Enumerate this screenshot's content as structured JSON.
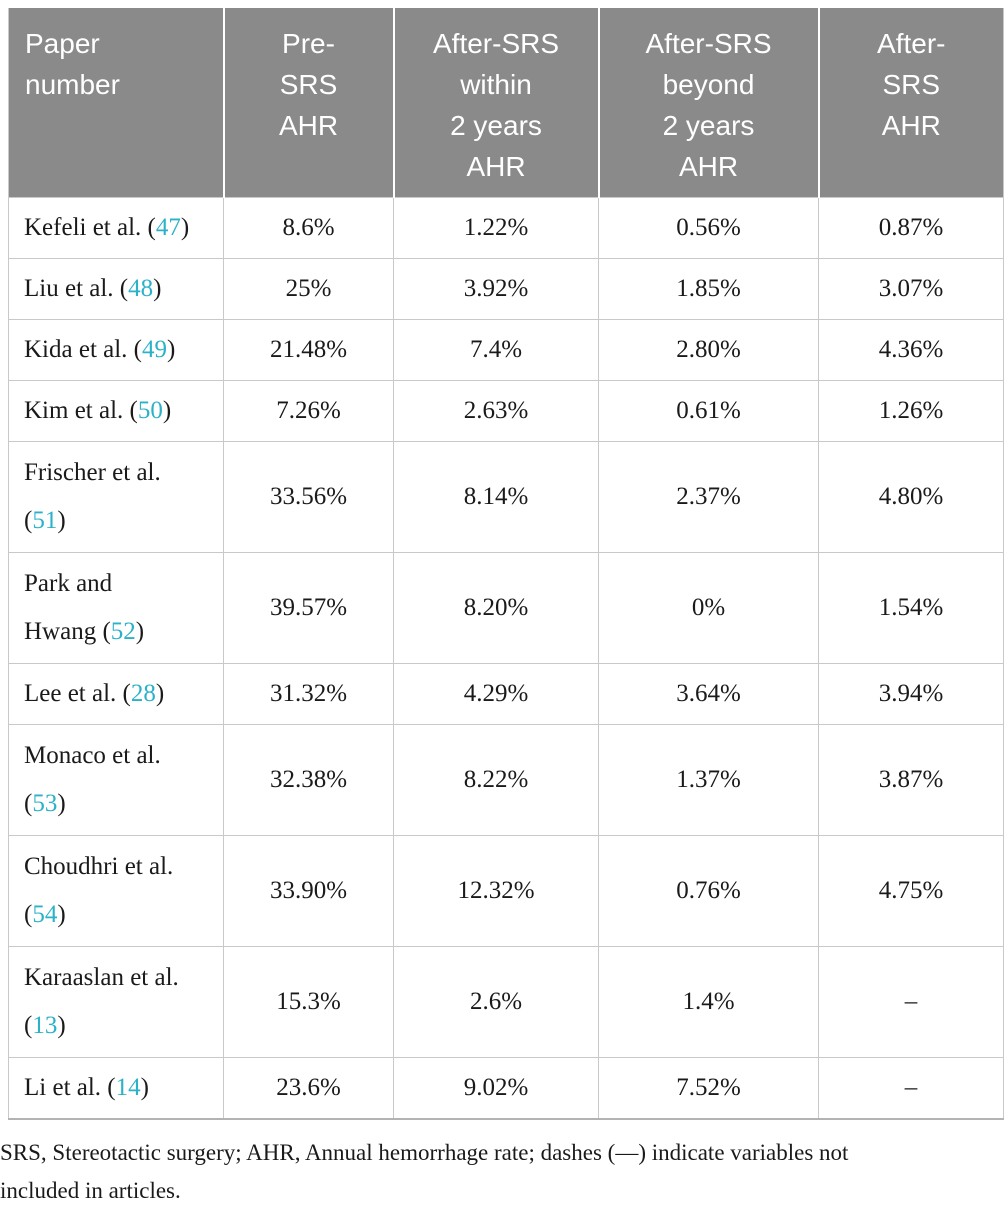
{
  "table": {
    "columns": [
      {
        "id": "paper-number",
        "label": "Paper number",
        "lines": [
          "Paper",
          "number"
        ]
      },
      {
        "id": "pre-srs-ahr",
        "label": "Pre-SRS AHR",
        "lines": [
          "Pre-",
          "SRS",
          "AHR"
        ]
      },
      {
        "id": "after-srs-within-2y",
        "label": "After-SRS within 2 years AHR",
        "lines": [
          "After-SRS",
          "within",
          "2 years",
          "AHR"
        ]
      },
      {
        "id": "after-srs-beyond-2y",
        "label": "After-SRS beyond 2 years AHR",
        "lines": [
          "After-SRS",
          "beyond",
          "2 years",
          "AHR"
        ]
      },
      {
        "id": "after-srs-ahr",
        "label": "After-SRS AHR",
        "lines": [
          "After-",
          "SRS",
          "AHR"
        ]
      }
    ],
    "rows": [
      {
        "paper": "Kefeli et al. (47)",
        "ref": "47",
        "lines": [
          "Kefeli et al. (47)"
        ],
        "values": [
          "8.6%",
          "1.22%",
          "0.56%",
          "0.87%"
        ]
      },
      {
        "paper": "Liu et al. (48)",
        "ref": "48",
        "lines": [
          "Liu et al. (48)"
        ],
        "values": [
          "25%",
          "3.92%",
          "1.85%",
          "3.07%"
        ]
      },
      {
        "paper": "Kida et al. (49)",
        "ref": "49",
        "lines": [
          "Kida et al. (49)"
        ],
        "values": [
          "21.48%",
          "7.4%",
          "2.80%",
          "4.36%"
        ]
      },
      {
        "paper": "Kim et al. (50)",
        "ref": "50",
        "lines": [
          "Kim et al. (50)"
        ],
        "values": [
          "7.26%",
          "2.63%",
          "0.61%",
          "1.26%"
        ]
      },
      {
        "paper": "Frischer et al. (51)",
        "ref": "51",
        "lines": [
          "Frischer et al.",
          "(51)"
        ],
        "values": [
          "33.56%",
          "8.14%",
          "2.37%",
          "4.80%"
        ]
      },
      {
        "paper": "Park and Hwang (52)",
        "ref": "52",
        "lines": [
          "Park and",
          "Hwang (52)"
        ],
        "values": [
          "39.57%",
          "8.20%",
          "0%",
          "1.54%"
        ]
      },
      {
        "paper": "Lee et al. (28)",
        "ref": "28",
        "lines": [
          "Lee et al. (28)"
        ],
        "values": [
          "31.32%",
          "4.29%",
          "3.64%",
          "3.94%"
        ]
      },
      {
        "paper": "Monaco et al. (53)",
        "ref": "53",
        "lines": [
          "Monaco et al.",
          "(53)"
        ],
        "values": [
          "32.38%",
          "8.22%",
          "1.37%",
          "3.87%"
        ]
      },
      {
        "paper": "Choudhri et al. (54)",
        "ref": "54",
        "lines": [
          "Choudhri et al.",
          "(54)"
        ],
        "values": [
          "33.90%",
          "12.32%",
          "0.76%",
          "4.75%"
        ]
      },
      {
        "paper": "Karaaslan et al. (13)",
        "ref": "13",
        "lines": [
          "Karaaslan et al.",
          "(13)"
        ],
        "values": [
          "15.3%",
          "2.6%",
          "1.4%",
          "–"
        ]
      },
      {
        "paper": "Li et al. (14)",
        "ref": "14",
        "lines": [
          "Li et al. (14)"
        ],
        "values": [
          "23.6%",
          "9.02%",
          "7.52%",
          "–"
        ]
      }
    ],
    "missing_value_symbol": "–"
  },
  "footnote": {
    "full": "SRS, Stereotactic surgery; AHR, Annual hemorrhage rate; dashes (—) indicate variables not included in articles.",
    "line1": "SRS, Stereotactic surgery; AHR, Annual hemorrhage rate; dashes (—) indicate variables not",
    "line2": "included in articles."
  },
  "colors": {
    "header_bg": "#8a8a8a",
    "header_text": "#ffffff",
    "body_text": "#1a1a1a",
    "citation": "#2bb2c8",
    "border": "#c9c9c9"
  }
}
